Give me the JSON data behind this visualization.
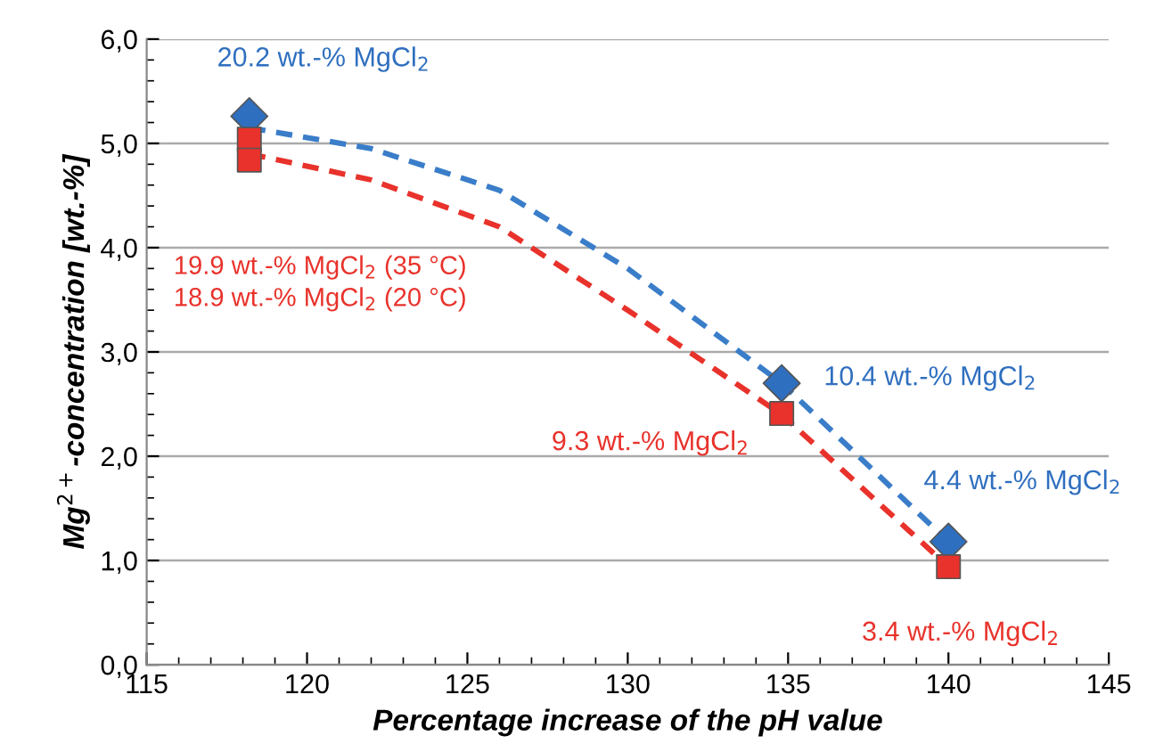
{
  "chart_data": {
    "type": "scatter",
    "xlabel": "Percentage increase of the pH value",
    "ylabel": "Mg$^{2+}$-concentration [wt.-%]",
    "xlim": [
      115,
      145
    ],
    "xticks": [
      115,
      120,
      125,
      130,
      135,
      140,
      145
    ],
    "ylim": [
      0,
      6
    ],
    "yticks": [
      {
        "value": 0,
        "label": "0,0"
      },
      {
        "value": 1,
        "label": "1,0"
      },
      {
        "value": 2,
        "label": "2,0"
      },
      {
        "value": 3,
        "label": "3,0"
      },
      {
        "value": 4,
        "label": "4,0"
      },
      {
        "value": 5,
        "label": "5,0"
      },
      {
        "value": 6,
        "label": "6,0"
      }
    ],
    "grid": "y",
    "series": [
      {
        "type": "line",
        "color": "#3a7dc9",
        "line_style": "dashed",
        "marker": "none",
        "x": [
          118.2,
          122,
          126,
          130,
          134.8,
          140
        ],
        "values": [
          5.15,
          4.95,
          4.55,
          3.8,
          2.7,
          1.18
        ]
      },
      {
        "type": "line",
        "color": "#e8322b",
        "line_style": "dashed",
        "marker": "none",
        "x": [
          118.2,
          122,
          126,
          130,
          134.8,
          140
        ],
        "values": [
          4.9,
          4.65,
          4.2,
          3.4,
          2.4,
          0.94
        ]
      },
      {
        "color": "#2f6fbf",
        "marker": "diamond",
        "x": [
          118.2,
          134.8,
          140
        ],
        "values": [
          5.26,
          2.7,
          1.18
        ]
      },
      {
        "color": "#e8322b",
        "marker": "square",
        "x": [
          118.2,
          118.2,
          134.8,
          140
        ],
        "values": [
          5.04,
          4.84,
          2.41,
          0.94
        ]
      }
    ],
    "annotations": [
      {
        "text": "20.2 wt.-% MgCl$_{2}$",
        "x": 118.2,
        "y": 5.26
      },
      "19.9 wt.-% MgCl$_{2}$ (35 °C)",
      "18.9 wt.-% MgCl$_{2}$ (20 °C)",
      {
        "text": "10.4 wt.-% MgCl$_{2}$",
        "x": 134.8,
        "y": 2.7
      },
      {
        "text": "9.3 wt.-% MgCl$_{2}$",
        "x": 134.8,
        "y": 2.41
      },
      {
        "text": "4.4 wt.-% MgCl$_{2}$",
        "x": 140,
        "y": 1.18
      },
      {
        "text": "3.4 wt.-% MgCl$_{2}$",
        "x": 140,
        "y": 0.94
      }
    ]
  }
}
